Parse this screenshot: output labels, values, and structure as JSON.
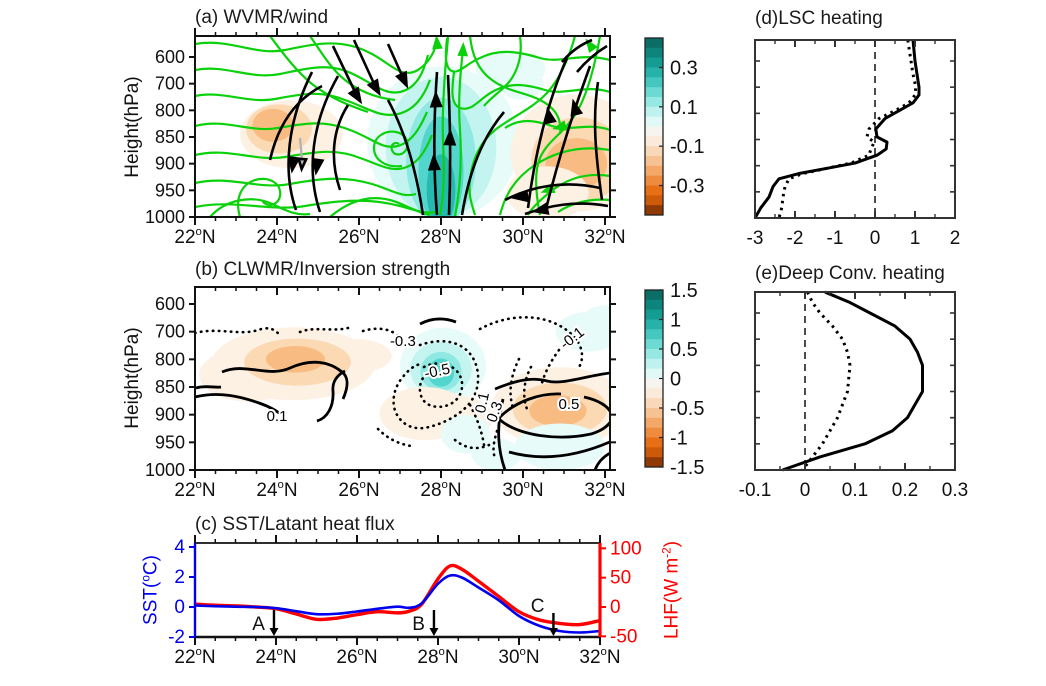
{
  "panels": {
    "a": {
      "title": "(a) WVMR/wind",
      "ylabel": "Height(hPa)"
    },
    "b": {
      "title": "(b) CLWMR/Inversion strength",
      "ylabel": "Height(hPa)"
    },
    "c": {
      "title": "(c) SST/Latant heat flux",
      "ylabel_left": {
        "pre": "SST(",
        "sup": "o",
        "post": "C)"
      },
      "ylabel_right": {
        "pre": "LHF(W m",
        "sup": "-2",
        "post": ")"
      }
    },
    "d": {
      "title": "(d)LSC heating"
    },
    "e": {
      "title": "(e)Deep Conv. heating"
    }
  },
  "chart_data": [
    {
      "id": "a",
      "type": "streamline+filled-contour",
      "title": "(a) WVMR/wind",
      "x_axis": {
        "ticks": [
          22,
          24,
          26,
          28,
          30,
          32
        ],
        "suffix": "N",
        "minor_step": 0.5,
        "range": [
          22,
          32
        ]
      },
      "y_axis": {
        "label": "Height(hPa)",
        "ticks": [
          600,
          700,
          800,
          850,
          900,
          950,
          1000
        ]
      },
      "colorbar": {
        "range": [
          -0.45,
          0.45
        ],
        "tick_values": [
          0.3,
          0.1,
          -0.1,
          -0.3
        ],
        "tick_labels": [
          "0.3",
          "0.1",
          "-0.1",
          "-0.3"
        ],
        "colors": [
          "#0a6e66",
          "#0e857c",
          "#159c92",
          "#27b2a9",
          "#45c7bf",
          "#6cd9d2",
          "#96e8e3",
          "#bff2ef",
          "#e0f8f6",
          "#f7f3ee",
          "#fbe9da",
          "#f9d7b9",
          "#f6c193",
          "#f3a768",
          "#ee8b3c",
          "#e76f16",
          "#cc5a08",
          "#8f3a04"
        ]
      },
      "palette": {
        "teal": [
          "#e7fbf9",
          "#c3f4f0",
          "#8fe8e2",
          "#52d5cc",
          "#25b9b0"
        ],
        "orange": [
          "#fdf1e3",
          "#fbd9b3",
          "#f8bc83",
          "#f4a052",
          "#ef8327"
        ]
      },
      "stream_colors": {
        "climatology": "#0bd10b",
        "anomaly": "#000000",
        "gray": "#b3b3b3"
      },
      "shading_regions": [
        {
          "lat": 28.05,
          "p": 860,
          "rlat": 1.85,
          "rp": 230,
          "fill": "teal.0"
        },
        {
          "lat": 28.0,
          "p": 870,
          "rlat": 1.35,
          "rp": 200,
          "fill": "teal.1"
        },
        {
          "lat": 28.0,
          "p": 895,
          "rlat": 0.85,
          "rp": 170,
          "fill": "teal.2"
        },
        {
          "lat": 28.0,
          "p": 915,
          "rlat": 0.55,
          "rp": 130,
          "fill": "teal.3"
        },
        {
          "lat": 28.0,
          "p": 950,
          "rlat": 0.35,
          "rp": 85,
          "fill": "teal.4"
        },
        {
          "lat": 29.7,
          "p": 645,
          "rlat": 0.85,
          "rp": 70,
          "fill": "teal.0"
        },
        {
          "lat": 29.95,
          "p": 700,
          "rlat": 0.55,
          "rp": 60,
          "fill": "teal.0"
        },
        {
          "lat": 24.35,
          "p": 845,
          "rlat": 1.25,
          "rp": 70,
          "fill": "orange.0"
        },
        {
          "lat": 24.05,
          "p": 835,
          "rlat": 0.8,
          "rp": 50,
          "fill": "orange.1"
        },
        {
          "lat": 23.9,
          "p": 828,
          "rlat": 0.5,
          "rp": 32,
          "fill": "orange.2"
        },
        {
          "lat": 31.3,
          "p": 880,
          "rlat": 1.6,
          "rp": 120,
          "fill": "orange.0"
        },
        {
          "lat": 31.35,
          "p": 893,
          "rlat": 1.15,
          "rp": 80,
          "fill": "orange.1"
        },
        {
          "lat": 31.3,
          "p": 900,
          "rlat": 0.75,
          "rp": 48,
          "fill": "orange.2"
        },
        {
          "lat": 30.6,
          "p": 955,
          "rlat": 1.0,
          "rp": 55,
          "fill": "orange.0"
        }
      ]
    },
    {
      "id": "b",
      "type": "contour+filled-contour",
      "title": "(b) CLWMR/Inversion strength",
      "x_axis": {
        "ticks": [
          22,
          24,
          26,
          28,
          30,
          32
        ],
        "suffix": "N",
        "minor_step": 0.5,
        "range": [
          22,
          32
        ]
      },
      "y_axis": {
        "label": "Height(hPa)",
        "ticks": [
          600,
          700,
          800,
          850,
          900,
          950,
          1000
        ]
      },
      "colorbar": {
        "range": [
          -1.5,
          1.5
        ],
        "tick_values": [
          1.5,
          1,
          0.5,
          0,
          -0.5,
          -1,
          -1.5
        ],
        "tick_labels": [
          "1.5",
          "1",
          "0.5",
          "0",
          "-0.5",
          "-1",
          "-1.5"
        ],
        "colors": [
          "#0a6e66",
          "#0e857c",
          "#159c92",
          "#27b2a9",
          "#45c7bf",
          "#6cd9d2",
          "#96e8e3",
          "#bff2ef",
          "#e0f8f6",
          "#f7f3ee",
          "#fbe9da",
          "#f9d7b9",
          "#f6c193",
          "#f3a768",
          "#ee8b3c",
          "#e76f16",
          "#cc5a08",
          "#8f3a04"
        ]
      },
      "contour_labels": [
        {
          "text": "-0.3",
          "lat": 27.07,
          "p": 734,
          "rot": 0
        },
        {
          "text": "-0.5",
          "lat": 27.93,
          "p": 821,
          "rot": -12
        },
        {
          "text": "0.1",
          "lat": 24.0,
          "p": 902,
          "rot": 0
        },
        {
          "text": "0.1",
          "lat": 29.12,
          "p": 871,
          "rot": -78
        },
        {
          "text": "0.3",
          "lat": 29.42,
          "p": 889,
          "rot": -70
        },
        {
          "text": "0.5",
          "lat": 31.12,
          "p": 881,
          "rot": 0
        },
        {
          "text": "-0.1",
          "lat": 31.27,
          "p": 719,
          "rot": -38
        }
      ],
      "shading_regions": [
        {
          "lat": 24.4,
          "p": 808,
          "rlat": 2.0,
          "rp": 85,
          "fill": "orange.0"
        },
        {
          "lat": 23.3,
          "p": 828,
          "rlat": 1.2,
          "rp": 55,
          "fill": "orange.0"
        },
        {
          "lat": 25.9,
          "p": 788,
          "rlat": 0.9,
          "rp": 45,
          "fill": "orange.0"
        },
        {
          "lat": 24.5,
          "p": 805,
          "rlat": 1.3,
          "rp": 55,
          "fill": "orange.1"
        },
        {
          "lat": 24.45,
          "p": 800,
          "rlat": 0.72,
          "rp": 32,
          "fill": "orange.2"
        },
        {
          "lat": 28.05,
          "p": 812,
          "rlat": 1.05,
          "rp": 88,
          "fill": "teal.0"
        },
        {
          "lat": 28.0,
          "p": 818,
          "rlat": 0.75,
          "rp": 60,
          "fill": "teal.1"
        },
        {
          "lat": 28.0,
          "p": 822,
          "rlat": 0.5,
          "rp": 40,
          "fill": "teal.2"
        },
        {
          "lat": 28.0,
          "p": 824,
          "rlat": 0.32,
          "rp": 26,
          "fill": "teal.3"
        },
        {
          "lat": 27.6,
          "p": 898,
          "rlat": 1.1,
          "rp": 48,
          "fill": "orange.0"
        },
        {
          "lat": 28.45,
          "p": 906,
          "rlat": 0.8,
          "rp": 40,
          "fill": "orange.0"
        },
        {
          "lat": 30.9,
          "p": 886,
          "rlat": 1.65,
          "rp": 72,
          "fill": "orange.0"
        },
        {
          "lat": 30.9,
          "p": 890,
          "rlat": 1.15,
          "rp": 48,
          "fill": "orange.1"
        },
        {
          "lat": 30.85,
          "p": 893,
          "rlat": 0.7,
          "rp": 28,
          "fill": "orange.2"
        },
        {
          "lat": 31.6,
          "p": 700,
          "rlat": 0.8,
          "rp": 72,
          "fill": "teal.0"
        },
        {
          "lat": 32.0,
          "p": 645,
          "rlat": 0.5,
          "rp": 40,
          "fill": "teal.0"
        },
        {
          "lat": 30.9,
          "p": 958,
          "rlat": 1.1,
          "rp": 42,
          "fill": "teal.0"
        },
        {
          "lat": 29.35,
          "p": 972,
          "rlat": 0.6,
          "rp": 30,
          "fill": "teal.0"
        },
        {
          "lat": 28.6,
          "p": 935,
          "rlat": 0.6,
          "rp": 35,
          "fill": "teal.0"
        }
      ]
    },
    {
      "id": "c",
      "type": "line",
      "title": "(c) SST/Latant heat flux",
      "x_axis": {
        "ticks": [
          22,
          24,
          26,
          28,
          30,
          32
        ],
        "suffix": "N",
        "minor_step": 0.5,
        "range": [
          22,
          32
        ]
      },
      "left_axis": {
        "ticks": [
          4,
          2,
          0,
          -2
        ],
        "range": [
          -2,
          4
        ],
        "color": "#0000ee"
      },
      "right_axis": {
        "ticks": [
          100,
          50,
          0,
          -50
        ],
        "range": [
          -50,
          100
        ],
        "color": "#ff0000"
      },
      "series": [
        {
          "name": "SST",
          "axis": "left",
          "color": "#0000ee",
          "x": [
            22,
            22.5,
            23,
            23.5,
            24,
            24.5,
            25,
            25.5,
            26,
            26.5,
            27,
            27.3,
            27.6,
            28,
            28.3,
            28.6,
            29,
            29.5,
            30,
            30.5,
            31,
            31.5,
            32
          ],
          "y": [
            0.1,
            0.05,
            0.02,
            0.0,
            -0.08,
            -0.28,
            -0.48,
            -0.45,
            -0.3,
            -0.12,
            0.02,
            -0.05,
            0.25,
            1.55,
            2.1,
            1.95,
            1.3,
            0.45,
            -0.6,
            -1.25,
            -1.6,
            -1.7,
            -1.6
          ]
        },
        {
          "name": "LHF",
          "axis": "right",
          "color": "#ff0000",
          "x": [
            22,
            22.5,
            23,
            23.5,
            24,
            24.5,
            25,
            25.5,
            26,
            26.5,
            27,
            27.3,
            27.6,
            28,
            28.3,
            28.6,
            29,
            29.5,
            30,
            30.5,
            31,
            31.5,
            32
          ],
          "y": [
            5,
            3,
            2,
            0,
            -3,
            -12,
            -21,
            -19,
            -13,
            -8,
            -10,
            -7,
            5,
            48,
            70,
            64,
            44,
            18,
            -8,
            -22,
            -28,
            -30,
            -23
          ]
        }
      ],
      "markers": [
        {
          "label": "A",
          "lat": 23.95
        },
        {
          "label": "B",
          "lat": 27.9
        },
        {
          "label": "C",
          "lat": 30.85
        }
      ]
    },
    {
      "id": "d",
      "type": "profile-line",
      "title": "(d)LSC heating",
      "x_axis": {
        "tick_labels": [
          "-3",
          "-2",
          "-1",
          "0",
          "1",
          "2"
        ],
        "tick_values": [
          -3,
          -2,
          -1,
          0,
          1,
          2
        ],
        "minor_step": 0.5,
        "range": [
          -3,
          2
        ]
      },
      "zero_line": 0,
      "levels": [
        520,
        600,
        650,
        700,
        730,
        760,
        790,
        810,
        830,
        845,
        855,
        868,
        880,
        895,
        905,
        915,
        925,
        940,
        960,
        980,
        1000
      ],
      "solid": [
        0.95,
        1.0,
        1.05,
        1.1,
        1.1,
        0.95,
        0.6,
        0.25,
        0.02,
        0.05,
        0.3,
        0.28,
        0.05,
        -0.5,
        -1.2,
        -1.9,
        -2.4,
        -2.55,
        -2.65,
        -2.85,
        -3.02
      ],
      "dotted": [
        0.82,
        0.9,
        0.95,
        1.02,
        1.0,
        0.85,
        0.5,
        0.1,
        -0.15,
        -0.2,
        -0.02,
        -0.1,
        -0.15,
        -0.6,
        -1.2,
        -1.8,
        -2.15,
        -2.25,
        -2.3,
        -2.33,
        -2.4
      ]
    },
    {
      "id": "e",
      "type": "profile-line",
      "title": "(e)Deep Conv. heating",
      "x_axis": {
        "tick_labels": [
          "-0.1",
          "0",
          "0.1",
          "0.2",
          "0.3"
        ],
        "tick_values": [
          -0.1,
          0,
          0.1,
          0.2,
          0.3
        ],
        "minor_step": 0.05,
        "range": [
          -0.1,
          0.3
        ]
      },
      "zero_line": 0,
      "levels": [
        520,
        560,
        600,
        650,
        700,
        750,
        800,
        850,
        900,
        925,
        950,
        975,
        1000
      ],
      "solid": [
        0.04,
        0.09,
        0.13,
        0.18,
        0.21,
        0.225,
        0.235,
        0.235,
        0.205,
        0.175,
        0.12,
        0.03,
        -0.045
      ],
      "dotted": [
        0.005,
        0.015,
        0.03,
        0.055,
        0.075,
        0.085,
        0.09,
        0.085,
        0.065,
        0.05,
        0.035,
        0.015,
        -0.005
      ]
    }
  ]
}
